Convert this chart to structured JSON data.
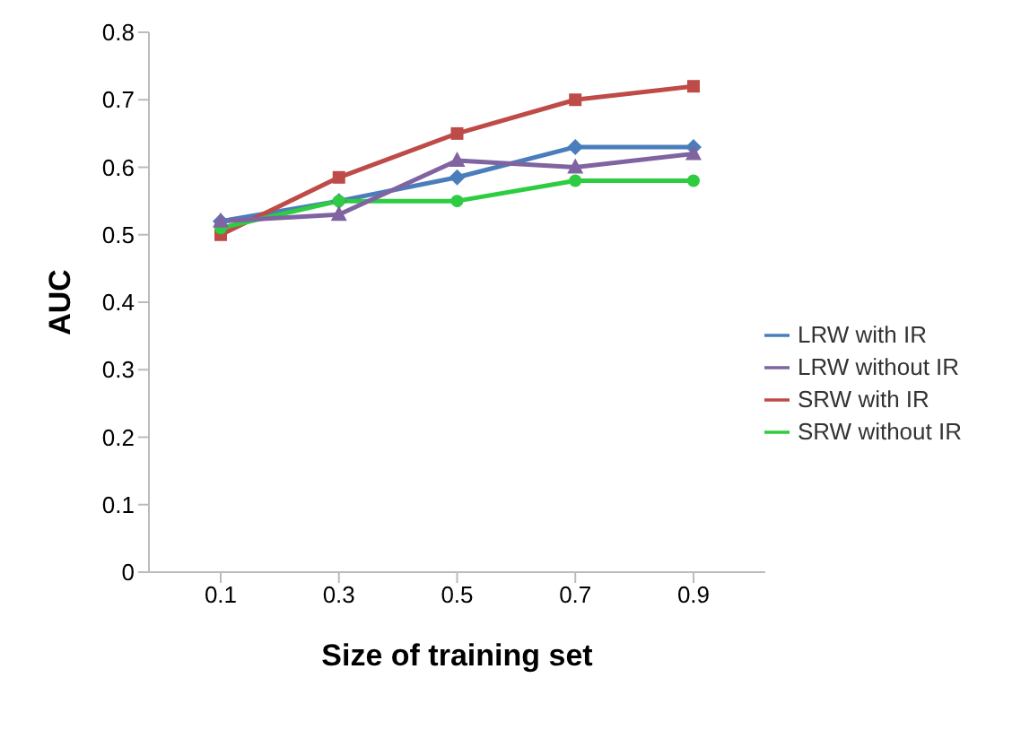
{
  "chart_data": {
    "type": "line",
    "xlabel": "Size of training set",
    "ylabel": "AUC",
    "categories": [
      "0.1",
      "0.3",
      "0.5",
      "0.7",
      "0.9"
    ],
    "ylim": [
      0,
      0.8
    ],
    "yticks": [
      0,
      0.1,
      0.2,
      0.3,
      0.4,
      0.5,
      0.6,
      0.7,
      0.8
    ],
    "grid": false,
    "legend": "right",
    "series": [
      {
        "name": "LRW with IR",
        "color": "#4a7ebb",
        "marker": "diamond",
        "values": [
          0.52,
          0.55,
          0.585,
          0.63,
          0.63
        ]
      },
      {
        "name": "SRW with IR",
        "color": "#be4b48",
        "marker": "square",
        "values": [
          0.5,
          0.585,
          0.65,
          0.7,
          0.72
        ]
      },
      {
        "name": "SRW without IR",
        "color": "#2ecc40",
        "marker": "circle",
        "values": [
          0.51,
          0.55,
          0.55,
          0.58,
          0.58
        ]
      },
      {
        "name": "LRW without IR",
        "color": "#8064a2",
        "marker": "triangle",
        "values": [
          0.52,
          0.53,
          0.61,
          0.6,
          0.62
        ]
      }
    ]
  }
}
